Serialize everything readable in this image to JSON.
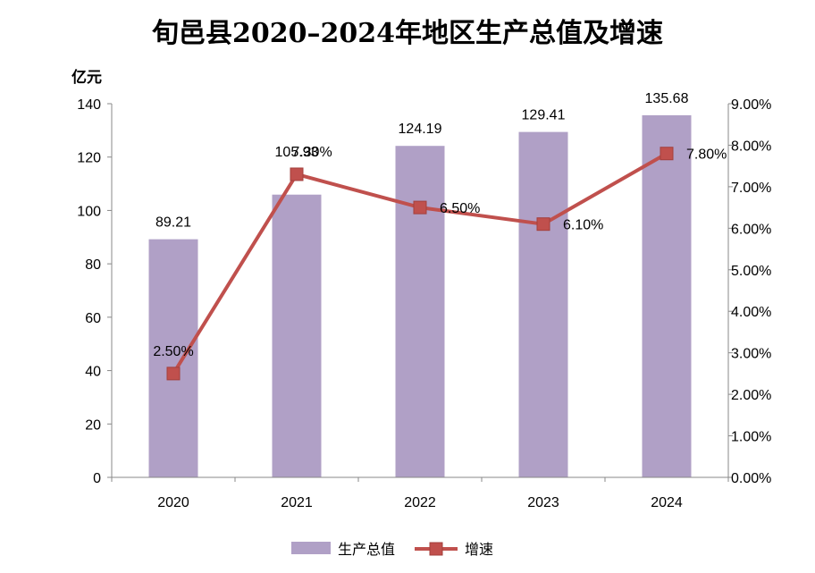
{
  "chart_data": {
    "type": "bar",
    "title": "旬邑县2020–2024年地区生产总值及增速",
    "y_unit": "亿元",
    "categories": [
      "2020",
      "2021",
      "2022",
      "2023",
      "2024"
    ],
    "series": [
      {
        "name": "生产总值",
        "type": "bar",
        "axis": "left",
        "values": [
          89.21,
          105.93,
          124.19,
          129.41,
          135.68
        ],
        "labels": [
          "89.21",
          "105.93",
          "124.19",
          "129.41",
          "135.68"
        ]
      },
      {
        "name": "增速",
        "type": "line",
        "axis": "right",
        "values": [
          2.5,
          7.3,
          6.5,
          6.1,
          7.8
        ],
        "labels": [
          "2.50%",
          "7.30%",
          "6.50%",
          "6.10%",
          "7.80%"
        ]
      }
    ],
    "ylim": [
      0,
      140
    ],
    "y_ticks": [
      "0",
      "20",
      "40",
      "60",
      "80",
      "100",
      "120",
      "140"
    ],
    "y2lim": [
      0,
      9
    ],
    "y2_ticks": [
      "0.00%",
      "1.00%",
      "2.00%",
      "3.00%",
      "4.00%",
      "5.00%",
      "6.00%",
      "7.00%",
      "8.00%",
      "9.00%"
    ],
    "legend_position": "bottom",
    "grid": false,
    "colors": {
      "bar": "#b0a0c6",
      "line": "#c0504d",
      "axis": "#888888"
    }
  }
}
